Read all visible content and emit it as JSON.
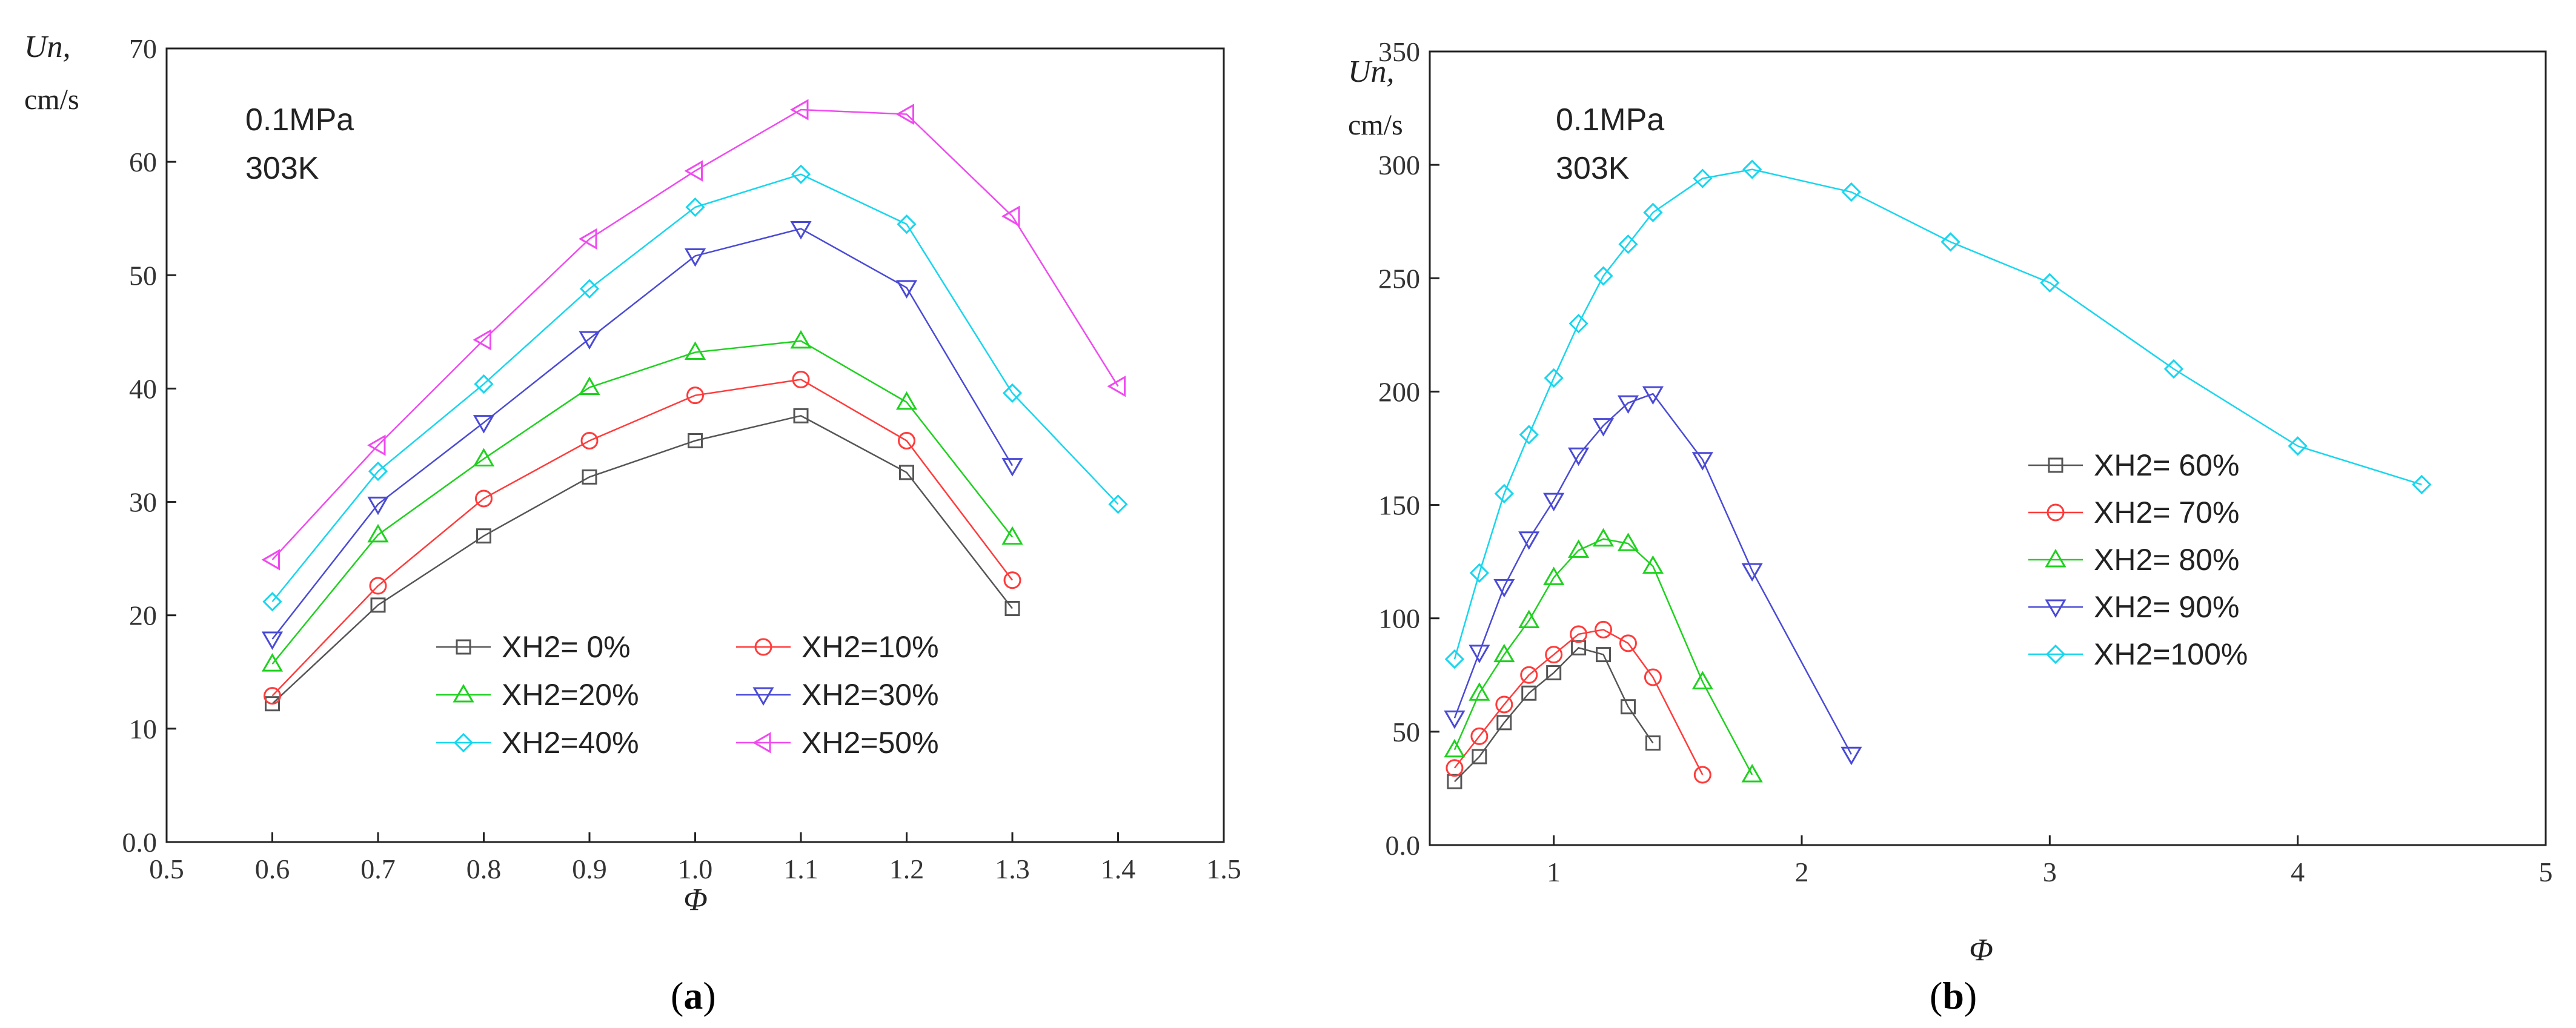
{
  "figure": {
    "panel_a": {
      "caption_open": "(",
      "caption_letter": "a",
      "caption_close": ")"
    },
    "panel_b": {
      "caption_open": "(",
      "caption_letter": "b",
      "caption_close": ")"
    }
  },
  "chart_data": [
    {
      "type": "line",
      "panel": "a",
      "ylabel": "Un,",
      "yunit": "cm/s",
      "xlabel": "Φ",
      "conditions": [
        "0.1MPa",
        "303K"
      ],
      "xlim": [
        0.5,
        1.5
      ],
      "ylim": [
        0,
        70
      ],
      "xticks": [
        "0.5",
        "0.6",
        "0.7",
        "0.8",
        "0.9",
        "1.0",
        "1.1",
        "1.2",
        "1.3",
        "1.4",
        "1.5"
      ],
      "yticks": [
        "0.0",
        "10",
        "20",
        "30",
        "40",
        "50",
        "60",
        "70"
      ],
      "legend_position": "bottom-center, two columns",
      "series": [
        {
          "name": "XH2= 0%",
          "color": "#555555",
          "marker": "square",
          "x": [
            0.6,
            0.7,
            0.8,
            0.9,
            1.0,
            1.1,
            1.2,
            1.3
          ],
          "values": [
            12.2,
            20.9,
            27.0,
            32.2,
            35.4,
            37.6,
            32.6,
            20.6
          ]
        },
        {
          "name": "XH2=10%",
          "color": "#ff3b3b",
          "marker": "circle",
          "x": [
            0.6,
            0.7,
            0.8,
            0.9,
            1.0,
            1.1,
            1.2,
            1.3
          ],
          "values": [
            12.9,
            22.6,
            30.3,
            35.4,
            39.4,
            40.8,
            35.4,
            23.1
          ]
        },
        {
          "name": "XH2=20%",
          "color": "#1fd11f",
          "marker": "triangle-up",
          "x": [
            0.6,
            0.7,
            0.8,
            0.9,
            1.0,
            1.1,
            1.2,
            1.3
          ],
          "values": [
            15.7,
            27.1,
            33.8,
            40.1,
            43.2,
            44.2,
            38.8,
            26.9
          ]
        },
        {
          "name": "XH2=30%",
          "color": "#4a4ad6",
          "marker": "triangle-down",
          "x": [
            0.6,
            0.7,
            0.8,
            0.9,
            1.0,
            1.1,
            1.2,
            1.3
          ],
          "values": [
            17.9,
            29.8,
            37.0,
            44.4,
            51.7,
            54.1,
            48.9,
            33.2
          ]
        },
        {
          "name": "XH2=40%",
          "color": "#17d6ee",
          "marker": "diamond",
          "x": [
            0.6,
            0.7,
            0.8,
            0.9,
            1.0,
            1.1,
            1.2,
            1.3,
            1.4
          ],
          "values": [
            21.2,
            32.7,
            40.4,
            48.8,
            56.0,
            58.9,
            54.5,
            39.6,
            29.8
          ]
        },
        {
          "name": "XH2=50%",
          "color": "#f049f0",
          "marker": "triangle-left",
          "x": [
            0.6,
            0.7,
            0.8,
            0.9,
            1.0,
            1.1,
            1.2,
            1.3,
            1.4
          ],
          "values": [
            24.9,
            35.0,
            44.3,
            53.2,
            59.2,
            64.6,
            64.2,
            55.2,
            40.2
          ]
        }
      ]
    },
    {
      "type": "line",
      "panel": "b",
      "ylabel": "Un,",
      "yunit": "cm/s",
      "xlabel": "Φ",
      "conditions": [
        "0.1MPa",
        "303K"
      ],
      "xlim": [
        0.5,
        5
      ],
      "ylim": [
        0,
        350
      ],
      "xticks": [
        "1",
        "2",
        "3",
        "4",
        "5"
      ],
      "yticks": [
        "0.0",
        "50",
        "100",
        "150",
        "200",
        "250",
        "300",
        "350"
      ],
      "legend_position": "center-right, one column",
      "series": [
        {
          "name": "XH2= 60%",
          "color": "#555555",
          "marker": "square",
          "x": [
            0.6,
            0.7,
            0.8,
            0.9,
            1.0,
            1.1,
            1.2,
            1.3,
            1.4
          ],
          "values": [
            28,
            39,
            54,
            67,
            76,
            87,
            84,
            61,
            45
          ]
        },
        {
          "name": "XH2= 70%",
          "color": "#ff3b3b",
          "marker": "circle",
          "x": [
            0.6,
            0.7,
            0.8,
            0.9,
            1.0,
            1.1,
            1.2,
            1.3,
            1.4,
            1.6
          ],
          "values": [
            34,
            48,
            62,
            75,
            84,
            93,
            95,
            89,
            74,
            31
          ]
        },
        {
          "name": "XH2= 80%",
          "color": "#1fd11f",
          "marker": "triangle-up",
          "x": [
            0.6,
            0.7,
            0.8,
            0.9,
            1.0,
            1.1,
            1.2,
            1.3,
            1.4,
            1.6,
            1.8
          ],
          "values": [
            42,
            67,
            84,
            99,
            118,
            130,
            135,
            133,
            123,
            72,
            31
          ]
        },
        {
          "name": "XH2= 90%",
          "color": "#4a4ad6",
          "marker": "triangle-down",
          "x": [
            0.6,
            0.7,
            0.8,
            0.9,
            1.0,
            1.1,
            1.2,
            1.3,
            1.4,
            1.6,
            1.8,
            2.2
          ],
          "values": [
            56,
            85,
            114,
            135,
            152,
            172,
            185,
            195,
            199,
            170,
            121,
            40
          ]
        },
        {
          "name": "XH2=100%",
          "color": "#17d6ee",
          "marker": "diamond",
          "x": [
            0.6,
            0.7,
            0.8,
            0.9,
            1.0,
            1.1,
            1.2,
            1.3,
            1.4,
            1.6,
            1.8,
            2.2,
            2.6,
            3.0,
            3.5,
            4.0,
            4.5
          ],
          "values": [
            82,
            120,
            155,
            181,
            206,
            230,
            251,
            265,
            279,
            294,
            298,
            288,
            266,
            248,
            210,
            176,
            159
          ]
        }
      ]
    }
  ]
}
